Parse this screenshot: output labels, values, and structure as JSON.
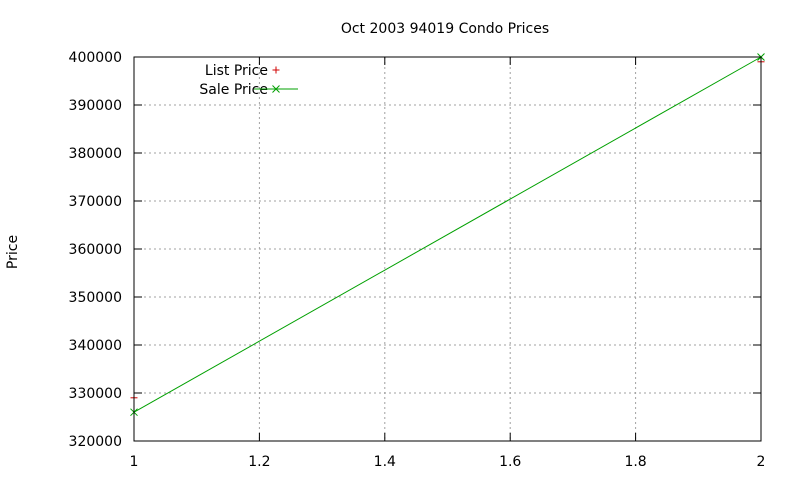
{
  "chart_data": {
    "type": "line",
    "title": "Oct 2003 94019 Condo Prices",
    "xlabel": "",
    "ylabel": "Price",
    "xlim": [
      1,
      2
    ],
    "ylim": [
      320000,
      400000
    ],
    "grid": true,
    "legend_position": "top-left",
    "x_ticks": [
      1,
      1.2,
      1.4,
      1.6,
      1.8,
      2
    ],
    "x_tick_labels": [
      "1",
      "1.2",
      "1.4",
      "1.6",
      "1.8",
      "2"
    ],
    "y_ticks": [
      320000,
      330000,
      340000,
      350000,
      360000,
      370000,
      380000,
      390000,
      400000
    ],
    "y_tick_labels": [
      "320000",
      "330000",
      "340000",
      "350000",
      "360000",
      "370000",
      "380000",
      "390000",
      "400000"
    ],
    "series": [
      {
        "name": "List Price",
        "style": "points",
        "marker": "plus",
        "color": "#d00000",
        "x": [
          1,
          2
        ],
        "y": [
          329000,
          399000
        ]
      },
      {
        "name": "Sale Price",
        "style": "linespoints",
        "marker": "cross",
        "color": "#00a000",
        "x": [
          1,
          2
        ],
        "y": [
          326000,
          400000
        ]
      }
    ]
  }
}
